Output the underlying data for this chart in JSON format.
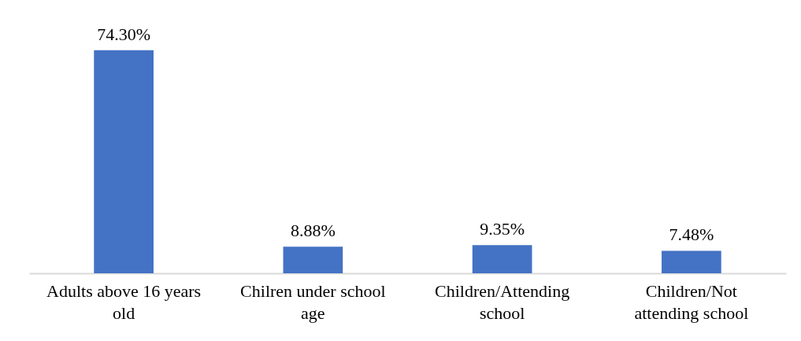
{
  "chart_data": {
    "type": "bar",
    "categories": [
      "Adults above 16 years old",
      "Chilren under school age",
      "Children/Attending school",
      "Children/Not attending school"
    ],
    "values": [
      74.3,
      8.88,
      9.35,
      7.48
    ],
    "color": "#4472c4",
    "value_labels": [
      "74.30%",
      "8.88%",
      "9.35%",
      "7.48%"
    ]
  }
}
